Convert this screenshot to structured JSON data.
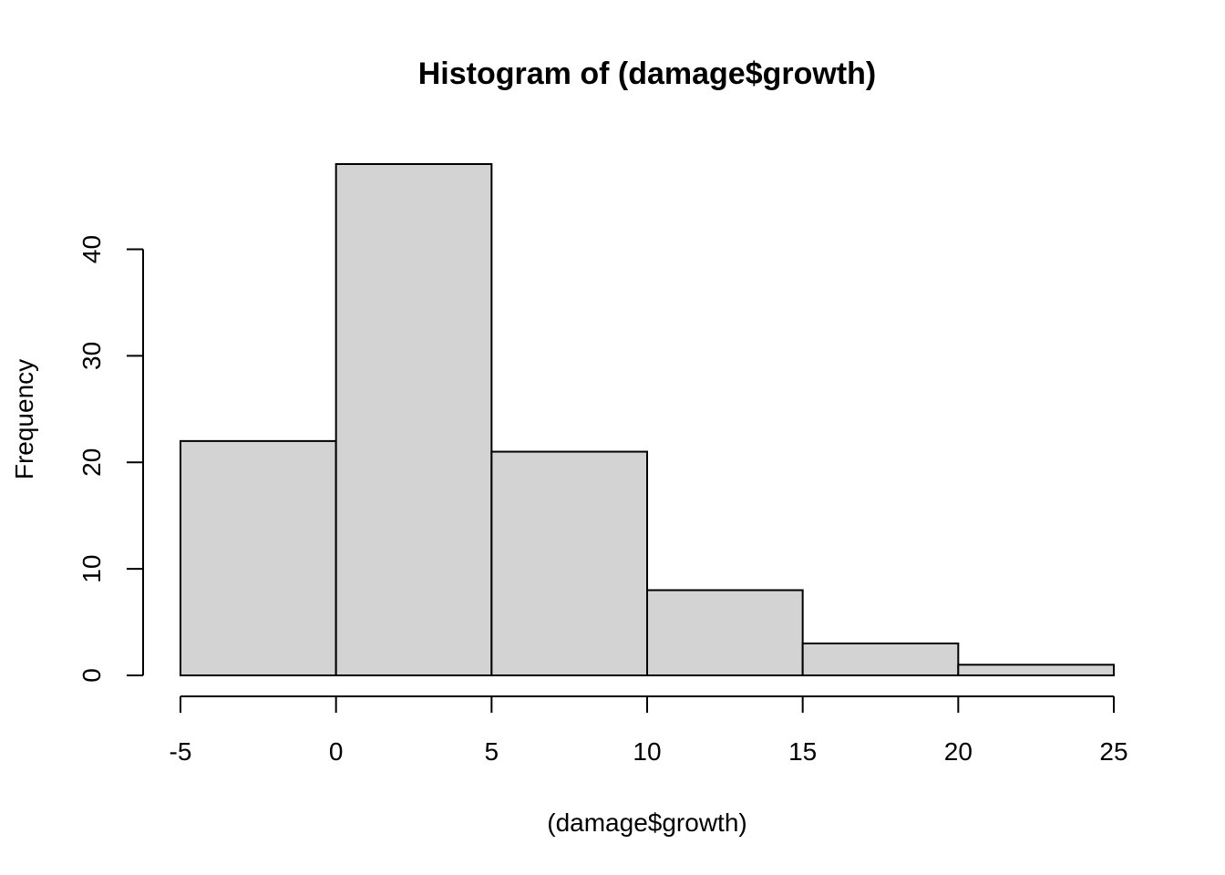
{
  "chart_data": {
    "type": "bar",
    "title": "Histogram of (damage$growth)",
    "xlabel": "(damage$growth)",
    "ylabel": "Frequency",
    "bins": [
      {
        "start": -5,
        "end": 0,
        "count": 22
      },
      {
        "start": 0,
        "end": 5,
        "count": 48
      },
      {
        "start": 5,
        "end": 10,
        "count": 21
      },
      {
        "start": 10,
        "end": 15,
        "count": 8
      },
      {
        "start": 15,
        "end": 20,
        "count": 3
      },
      {
        "start": 20,
        "end": 25,
        "count": 1
      }
    ],
    "xlim": [
      -5,
      25
    ],
    "ylim": [
      0,
      48
    ],
    "xticks": [
      -5,
      0,
      5,
      10,
      15,
      20,
      25
    ],
    "yticks": [
      0,
      10,
      20,
      30,
      40
    ],
    "bar_color": "#d3d3d3",
    "edge_color": "#000000",
    "grid": false
  }
}
